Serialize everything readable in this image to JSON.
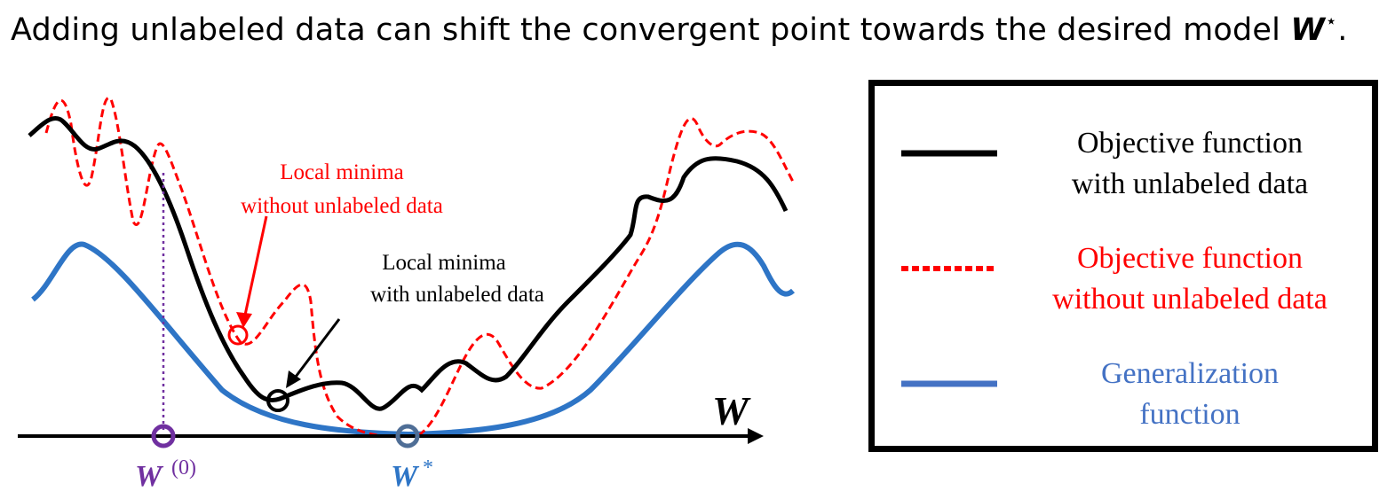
{
  "headline": {
    "text": "Adding unlabeled data can shift the convergent point towards the desired model ",
    "symbol": "W",
    "symbol_sup": "⋆",
    "end": "."
  },
  "axis": {
    "label": "W",
    "w0_label": "W",
    "w0_sup": "(0)",
    "wstar_label": "W",
    "wstar_sup": "*"
  },
  "annotations": {
    "local_without": [
      "Local minima",
      "without unlabeled data"
    ],
    "local_with": [
      "Local minima",
      "with unlabeled data"
    ]
  },
  "legend": {
    "items": [
      {
        "line1": "Objective function",
        "line2": "with unlabeled data",
        "color": "#000000",
        "style": "solid"
      },
      {
        "line1": "Objective function",
        "line2": "without unlabeled data",
        "color": "#ff0000",
        "style": "dashed"
      },
      {
        "line1": "Generalization",
        "line2": "function",
        "color": "#4472c4",
        "style": "solid"
      }
    ]
  },
  "colors": {
    "with_unlabeled": "#000000",
    "without_unlabeled": "#ff0000",
    "generalization": "#2e75c6",
    "initial_point": "#7030a0",
    "optimum_point": "#4f6e96"
  }
}
